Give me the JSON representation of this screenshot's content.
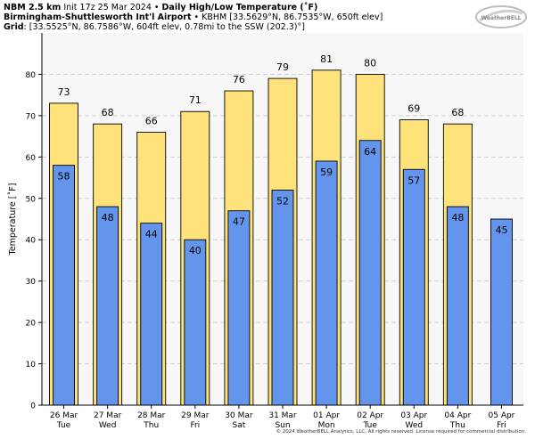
{
  "header": {
    "line1_bold": "NBM 2.5 km",
    "line1_rest": "Init 17z 25 Mar 2024 •",
    "line1_bold2": "Daily High/Low Temperature (˚F)",
    "line2_bold": "Birmingham-Shuttlesworth Int'l Airport",
    "line2_rest": "• KBHM [33.5629°N, 86.7535°W, 650ft elev]",
    "line3_bold": "Grid",
    "line3_rest": ": [33.5525°N, 86.7586°W, 604ft elev, 0.78mi to the SSW (202.3)°]"
  },
  "logo": {
    "text": "WeatherBELL"
  },
  "copyright": "© 2024 WeatherBELL Analytics, LLC. All rights reserved. License required for commercial distribution.",
  "chart_data": {
    "type": "bar",
    "title": "Daily High/Low Temperature (˚F)",
    "ylabel": "Temperature [˚F]",
    "xlabel": "",
    "ylim": [
      0,
      90
    ],
    "yticks": [
      0,
      10,
      20,
      30,
      40,
      50,
      60,
      70,
      80
    ],
    "grid": "horizontal dashed",
    "categories": [
      "26 Mar",
      "27 Mar",
      "28 Mar",
      "29 Mar",
      "30 Mar",
      "31 Mar",
      "01 Apr",
      "02 Apr",
      "03 Apr",
      "04 Apr",
      "05 Apr"
    ],
    "weekdays": [
      "Tue",
      "Wed",
      "Thu",
      "Fri",
      "Sat",
      "Sun",
      "Mon",
      "Tue",
      "Wed",
      "Thu",
      "Fri"
    ],
    "series": [
      {
        "name": "High",
        "color": "#ffe27a",
        "values": [
          73,
          68,
          66,
          71,
          76,
          79,
          81,
          80,
          69,
          68,
          null
        ],
        "labels": [
          "73",
          "68",
          "66",
          "71",
          "76",
          "79",
          "81",
          "80",
          "69",
          "68",
          ""
        ]
      },
      {
        "name": "Low",
        "color": "#6495ed",
        "values": [
          58,
          48,
          44,
          40,
          47,
          52,
          59,
          64,
          57,
          48,
          45
        ],
        "labels": [
          "58",
          "48",
          "44",
          "40",
          "47",
          "52",
          "59",
          "64",
          "57",
          "48",
          "45"
        ]
      }
    ]
  }
}
